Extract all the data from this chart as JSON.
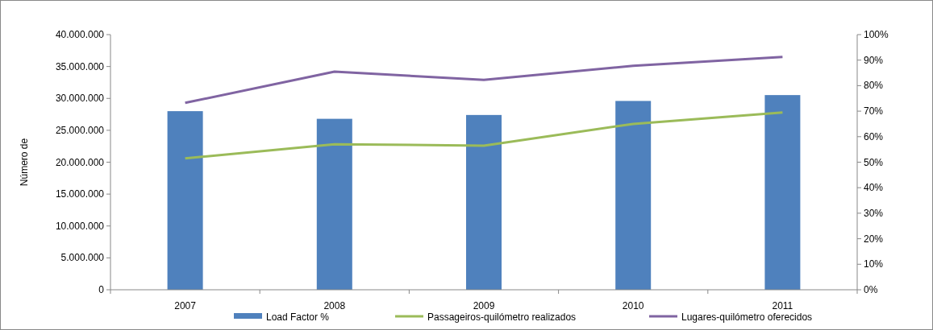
{
  "chart_data": {
    "type": "bar",
    "ylabel": "Número de",
    "categories": [
      "2007",
      "2008",
      "2009",
      "2010",
      "2011"
    ],
    "series": [
      {
        "name": "Load Factor %",
        "axis": "y2",
        "color": "#4f81bd",
        "values": [
          70,
          67,
          68.5,
          74,
          76.3
        ]
      },
      {
        "name": "Passageiros-quilómetro realizados",
        "type": "line",
        "color": "#9bbb59",
        "values": [
          20600000,
          22800000,
          22600000,
          26000000,
          27800000
        ]
      },
      {
        "name": "Lugares-quilómetro oferecidos",
        "type": "line",
        "color": "#8064a2",
        "values": [
          29300000,
          34200000,
          32900000,
          35100000,
          36500000
        ]
      }
    ],
    "ylim": [
      0,
      40000000
    ],
    "yticks": [
      {
        "value": 0,
        "label": "0"
      },
      {
        "value": 5000000,
        "label": "5.000.000"
      },
      {
        "value": 10000000,
        "label": "10.000.000"
      },
      {
        "value": 15000000,
        "label": "15.000.000"
      },
      {
        "value": 20000000,
        "label": "20.000.000"
      },
      {
        "value": 25000000,
        "label": "25.000.000"
      },
      {
        "value": 30000000,
        "label": "30.000.000"
      },
      {
        "value": 35000000,
        "label": "35.000.000"
      },
      {
        "value": 40000000,
        "label": "40.000.000"
      }
    ],
    "y2lim": [
      0,
      100
    ],
    "y2ticks": [
      {
        "value": 0,
        "label": "0%"
      },
      {
        "value": 10,
        "label": "10%"
      },
      {
        "value": 20,
        "label": "20%"
      },
      {
        "value": 30,
        "label": "30%"
      },
      {
        "value": 40,
        "label": "40%"
      },
      {
        "value": 50,
        "label": "50%"
      },
      {
        "value": 60,
        "label": "60%"
      },
      {
        "value": 70,
        "label": "70%"
      },
      {
        "value": 80,
        "label": "80%"
      },
      {
        "value": 90,
        "label": "90%"
      },
      {
        "value": 100,
        "label": "100%"
      }
    ],
    "grid": false,
    "legend": "bottom",
    "marker": "none",
    "line_style": "solid"
  }
}
